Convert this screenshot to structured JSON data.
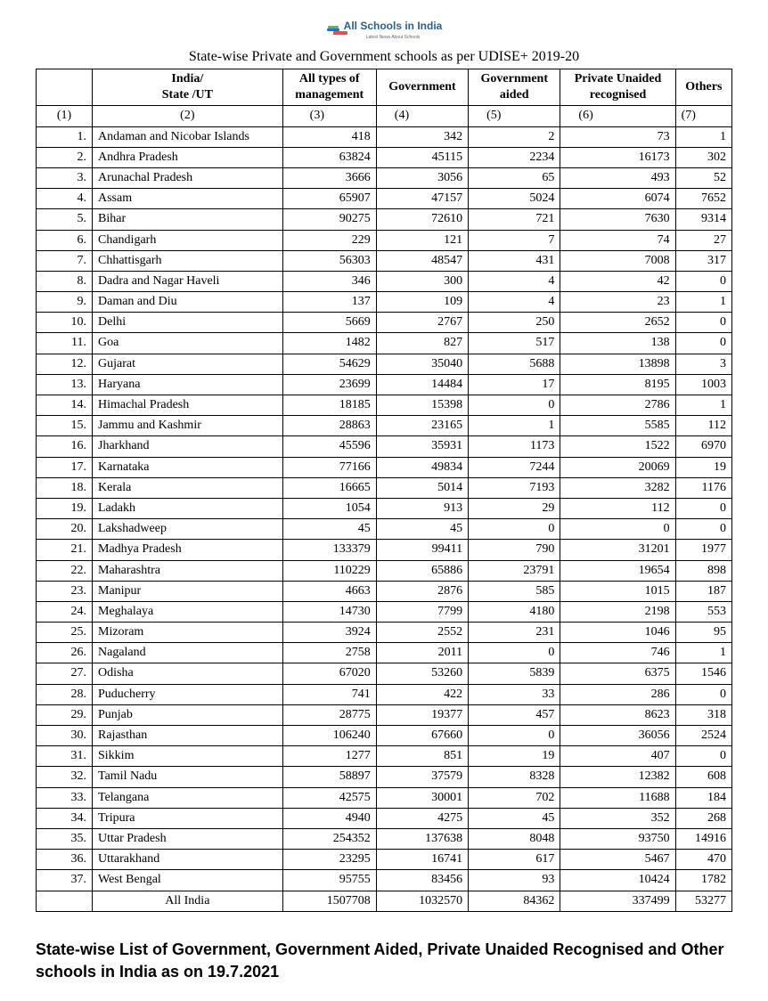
{
  "logo": {
    "text": "All Schools in India",
    "sub": "Latest News About Schools"
  },
  "title": "State-wise Private and Government schools as per UDISE+ 2019-20",
  "headers": {
    "c1_l1": "",
    "c2_l1": "India/",
    "c2_l2": "State /UT",
    "c3_l1": "All types of",
    "c3_l2": "management",
    "c4_l1": "Government",
    "c5_l1": "Government",
    "c5_l2": "aided",
    "c6_l1": "Private Unaided",
    "c6_l2": "recognised",
    "c7_l1": "Others"
  },
  "subhead": {
    "c1": "(1)",
    "c2": "(2)",
    "c3": "(3)",
    "c4": "(4)",
    "c5": "(5)",
    "c6": "(6)",
    "c7": "(7)"
  },
  "rows": [
    {
      "n": "1.",
      "state": "Andaman and Nicobar Islands",
      "v3": "418",
      "v4": "342",
      "v5": "2",
      "v6": "73",
      "v7": "1"
    },
    {
      "n": "2.",
      "state": "Andhra Pradesh",
      "v3": "63824",
      "v4": "45115",
      "v5": "2234",
      "v6": "16173",
      "v7": "302"
    },
    {
      "n": "3.",
      "state": "Arunachal Pradesh",
      "v3": "3666",
      "v4": "3056",
      "v5": "65",
      "v6": "493",
      "v7": "52"
    },
    {
      "n": "4.",
      "state": "Assam",
      "v3": "65907",
      "v4": "47157",
      "v5": "5024",
      "v6": "6074",
      "v7": "7652"
    },
    {
      "n": "5.",
      "state": "Bihar",
      "v3": "90275",
      "v4": "72610",
      "v5": "721",
      "v6": "7630",
      "v7": "9314"
    },
    {
      "n": "6.",
      "state": "Chandigarh",
      "v3": "229",
      "v4": "121",
      "v5": "7",
      "v6": "74",
      "v7": "27"
    },
    {
      "n": "7.",
      "state": "Chhattisgarh",
      "v3": "56303",
      "v4": "48547",
      "v5": "431",
      "v6": "7008",
      "v7": "317"
    },
    {
      "n": "8.",
      "state": "Dadra and Nagar Haveli",
      "v3": "346",
      "v4": "300",
      "v5": "4",
      "v6": "42",
      "v7": "0"
    },
    {
      "n": "9.",
      "state": "Daman and Diu",
      "v3": "137",
      "v4": "109",
      "v5": "4",
      "v6": "23",
      "v7": "1"
    },
    {
      "n": "10.",
      "state": "Delhi",
      "v3": "5669",
      "v4": "2767",
      "v5": "250",
      "v6": "2652",
      "v7": "0"
    },
    {
      "n": "11.",
      "state": "Goa",
      "v3": "1482",
      "v4": "827",
      "v5": "517",
      "v6": "138",
      "v7": "0"
    },
    {
      "n": "12.",
      "state": "Gujarat",
      "v3": "54629",
      "v4": "35040",
      "v5": "5688",
      "v6": "13898",
      "v7": "3"
    },
    {
      "n": "13.",
      "state": "Haryana",
      "v3": "23699",
      "v4": "14484",
      "v5": "17",
      "v6": "8195",
      "v7": "1003"
    },
    {
      "n": "14.",
      "state": "Himachal Pradesh",
      "v3": "18185",
      "v4": "15398",
      "v5": "0",
      "v6": "2786",
      "v7": "1"
    },
    {
      "n": "15.",
      "state": "Jammu and Kashmir",
      "v3": "28863",
      "v4": "23165",
      "v5": "1",
      "v6": "5585",
      "v7": "112"
    },
    {
      "n": "16.",
      "state": "Jharkhand",
      "v3": "45596",
      "v4": "35931",
      "v5": "1173",
      "v6": "1522",
      "v7": "6970"
    },
    {
      "n": "17.",
      "state": "Karnataka",
      "v3": "77166",
      "v4": "49834",
      "v5": "7244",
      "v6": "20069",
      "v7": "19"
    },
    {
      "n": "18.",
      "state": "Kerala",
      "v3": "16665",
      "v4": "5014",
      "v5": "7193",
      "v6": "3282",
      "v7": "1176"
    },
    {
      "n": "19.",
      "state": "Ladakh",
      "v3": "1054",
      "v4": "913",
      "v5": "29",
      "v6": "112",
      "v7": "0"
    },
    {
      "n": "20.",
      "state": "Lakshadweep",
      "v3": "45",
      "v4": "45",
      "v5": "0",
      "v6": "0",
      "v7": "0"
    },
    {
      "n": "21.",
      "state": "Madhya Pradesh",
      "v3": "133379",
      "v4": "99411",
      "v5": "790",
      "v6": "31201",
      "v7": "1977"
    },
    {
      "n": "22.",
      "state": "Maharashtra",
      "v3": "110229",
      "v4": "65886",
      "v5": "23791",
      "v6": "19654",
      "v7": "898"
    },
    {
      "n": "23.",
      "state": "Manipur",
      "v3": "4663",
      "v4": "2876",
      "v5": "585",
      "v6": "1015",
      "v7": "187"
    },
    {
      "n": "24.",
      "state": "Meghalaya",
      "v3": "14730",
      "v4": "7799",
      "v5": "4180",
      "v6": "2198",
      "v7": "553"
    },
    {
      "n": "25.",
      "state": "Mizoram",
      "v3": "3924",
      "v4": "2552",
      "v5": "231",
      "v6": "1046",
      "v7": "95"
    },
    {
      "n": "26.",
      "state": "Nagaland",
      "v3": "2758",
      "v4": "2011",
      "v5": "0",
      "v6": "746",
      "v7": "1"
    },
    {
      "n": "27.",
      "state": "Odisha",
      "v3": "67020",
      "v4": "53260",
      "v5": "5839",
      "v6": "6375",
      "v7": "1546"
    },
    {
      "n": "28.",
      "state": "Puducherry",
      "v3": "741",
      "v4": "422",
      "v5": "33",
      "v6": "286",
      "v7": "0"
    },
    {
      "n": "29.",
      "state": "Punjab",
      "v3": "28775",
      "v4": "19377",
      "v5": "457",
      "v6": "8623",
      "v7": "318"
    },
    {
      "n": "30.",
      "state": "Rajasthan",
      "v3": "106240",
      "v4": "67660",
      "v5": "0",
      "v6": "36056",
      "v7": "2524"
    },
    {
      "n": "31.",
      "state": "Sikkim",
      "v3": "1277",
      "v4": "851",
      "v5": "19",
      "v6": "407",
      "v7": "0"
    },
    {
      "n": "32.",
      "state": "Tamil Nadu",
      "v3": "58897",
      "v4": "37579",
      "v5": "8328",
      "v6": "12382",
      "v7": "608"
    },
    {
      "n": "33.",
      "state": "Telangana",
      "v3": "42575",
      "v4": "30001",
      "v5": "702",
      "v6": "11688",
      "v7": "184"
    },
    {
      "n": "34.",
      "state": "Tripura",
      "v3": "4940",
      "v4": "4275",
      "v5": "45",
      "v6": "352",
      "v7": "268"
    },
    {
      "n": "35.",
      "state": "Uttar Pradesh",
      "v3": "254352",
      "v4": "137638",
      "v5": "8048",
      "v6": "93750",
      "v7": "14916"
    },
    {
      "n": "36.",
      "state": "Uttarakhand",
      "v3": "23295",
      "v4": "16741",
      "v5": "617",
      "v6": "5467",
      "v7": "470"
    },
    {
      "n": "37.",
      "state": "West Bengal",
      "v3": "95755",
      "v4": "83456",
      "v5": "93",
      "v6": "10424",
      "v7": "1782"
    }
  ],
  "total": {
    "n": "",
    "state": "All India",
    "v3": "1507708",
    "v4": "1032570",
    "v5": "84362",
    "v6": "337499",
    "v7": "53277"
  },
  "footer": "State-wise List of Government, Government Aided, Private Unaided Recognised and Other schools in India as on 19.7.2021"
}
